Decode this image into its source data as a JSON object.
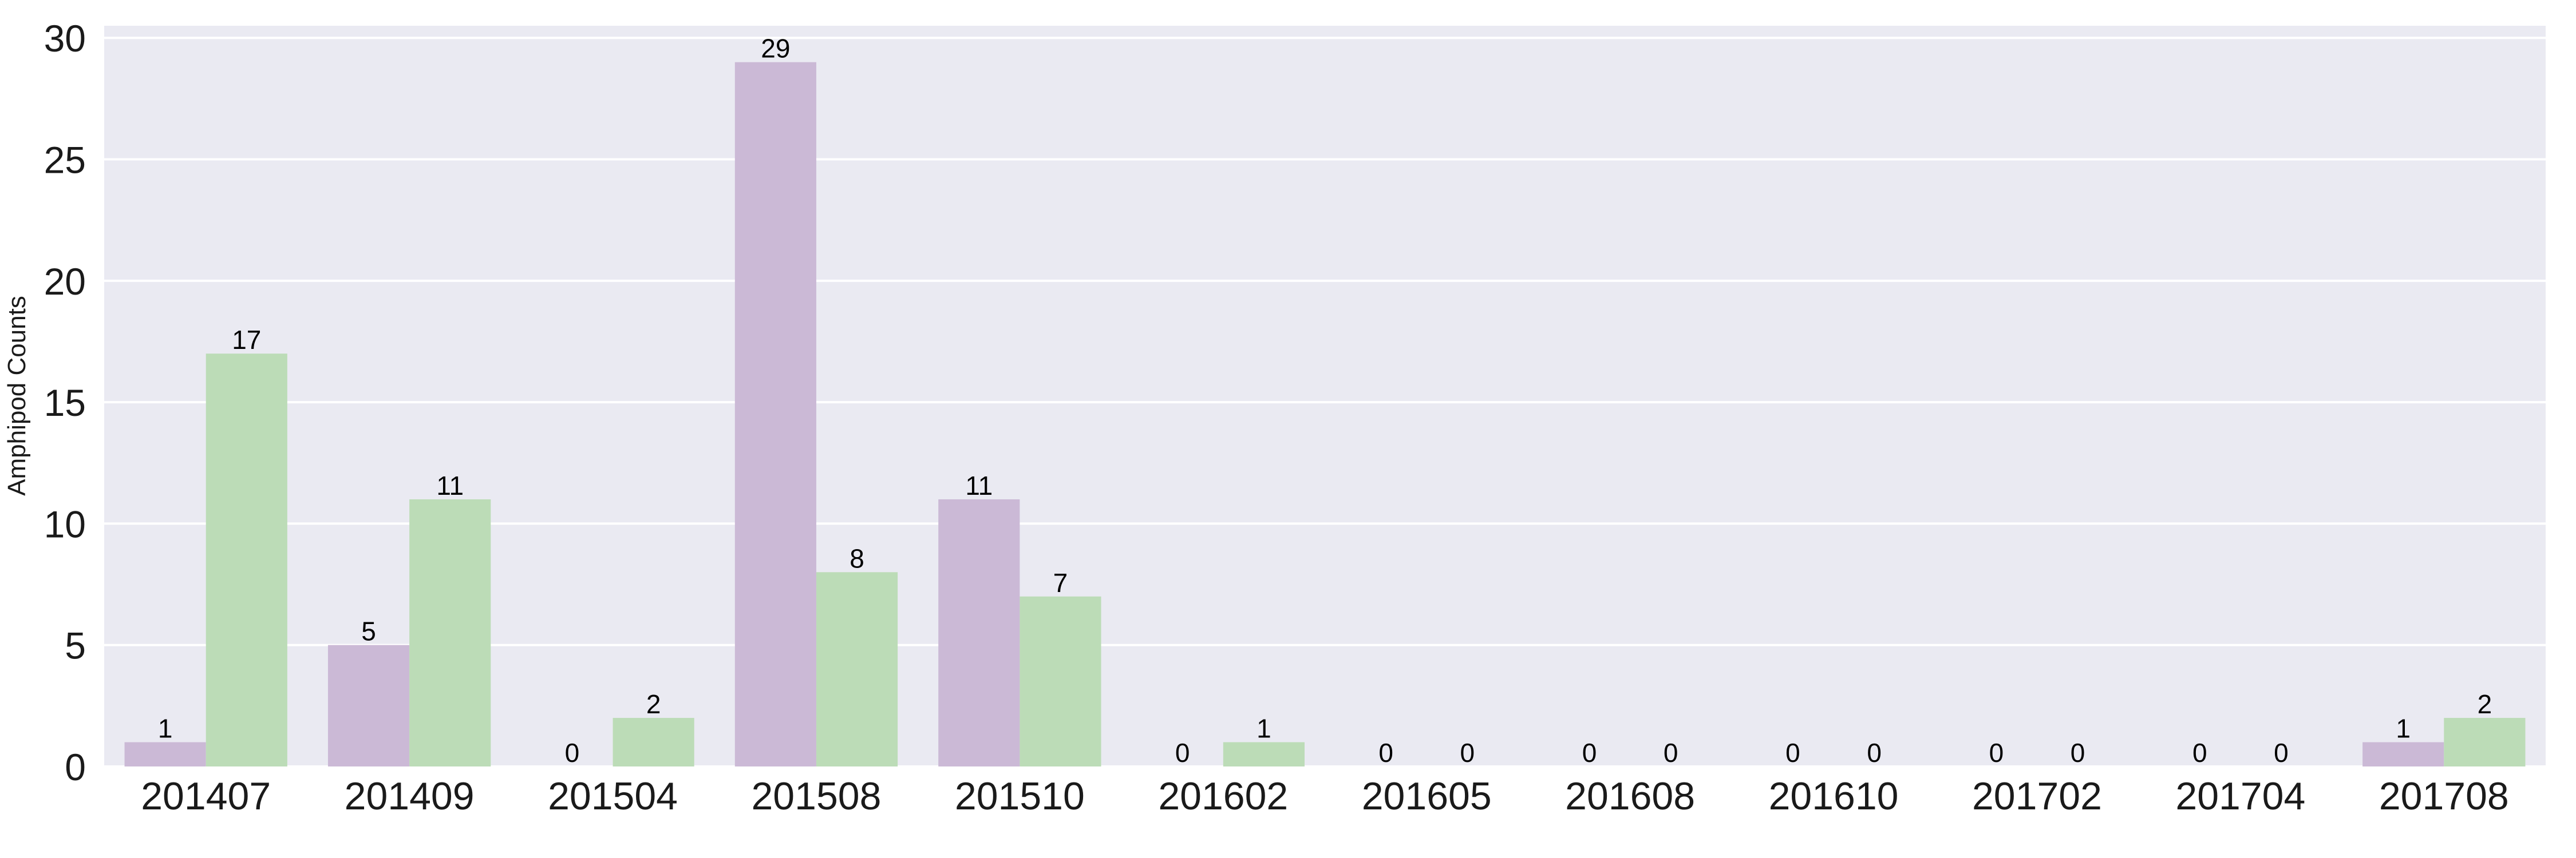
{
  "chart_data": {
    "type": "bar",
    "title": "",
    "xlabel": "",
    "ylabel": "Amphipod Counts",
    "ylim": [
      0,
      30.5
    ],
    "yticks": [
      0,
      5,
      10,
      15,
      20,
      25,
      30
    ],
    "grid": true,
    "legend": "none",
    "categories": [
      "201407",
      "201409",
      "201504",
      "201508",
      "201510",
      "201602",
      "201605",
      "201608",
      "201610",
      "201702",
      "201704",
      "201708"
    ],
    "series": [
      {
        "color": "#cbb9d6",
        "values": [
          1,
          5,
          0,
          29,
          11,
          0,
          0,
          0,
          0,
          0,
          0,
          1
        ]
      },
      {
        "color": "#bcdcb7",
        "values": [
          17,
          11,
          2,
          8,
          7,
          1,
          0,
          0,
          0,
          0,
          0,
          2
        ]
      }
    ],
    "plot_background": "#eaeaf2",
    "grid_color": "#ffffff"
  }
}
